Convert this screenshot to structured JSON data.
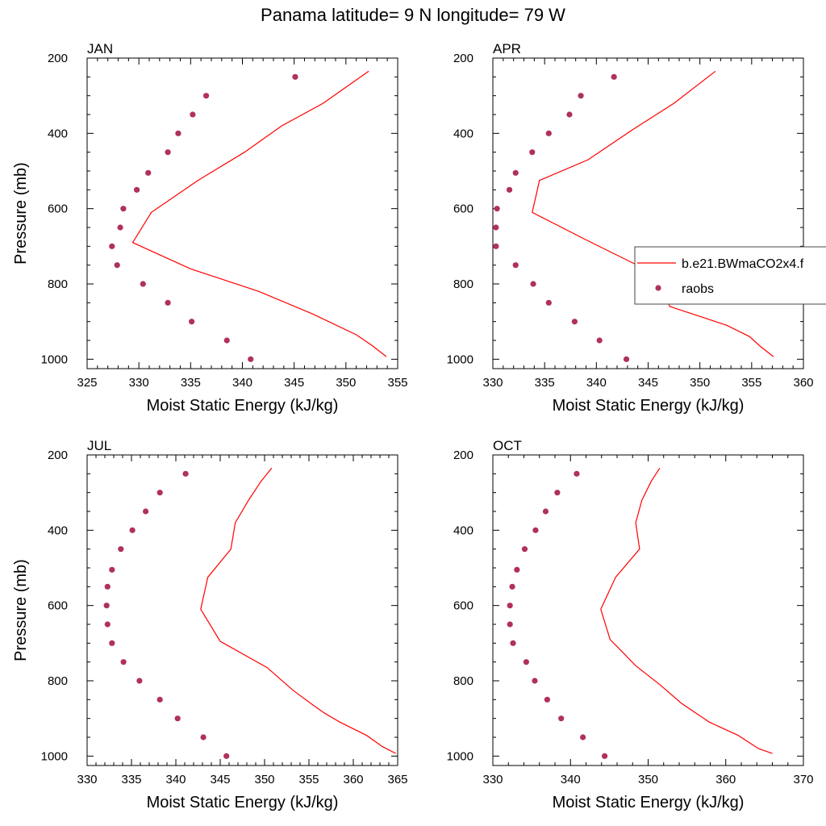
{
  "title": "Panama  latitude= 9 N longitude= 79 W",
  "colors": {
    "model": "#ff0000",
    "obs": "#b03060",
    "axis": "#000000"
  },
  "legend": {
    "placement": "inside APR panel, right edge",
    "entries": [
      {
        "label": "b.e21.BWmaCO2x4.f",
        "style": "line"
      },
      {
        "label": "raobs",
        "style": "marker"
      }
    ]
  },
  "chart_data": [
    {
      "type": "line",
      "title": "JAN",
      "xlabel": "Moist Static Energy (kJ/kg)",
      "ylabel": "Pressure (mb)",
      "xlim": [
        325,
        355
      ],
      "ylim": [
        200,
        1025
      ],
      "y_reversed": true,
      "xticks": [
        325,
        330,
        335,
        340,
        345,
        350,
        355
      ],
      "yticks": [
        200,
        400,
        600,
        800,
        1000
      ],
      "series": [
        {
          "name": "b.e21.BWmaCO2x4.f",
          "style": "line",
          "x": [
            352.2,
            347.8,
            343.8,
            340.2,
            335.7,
            331.2,
            329.4,
            335.0,
            341.6,
            346.8,
            351.0,
            352.6,
            353.9
          ],
          "y": [
            235,
            320,
            380,
            450,
            525,
            610,
            690,
            760,
            820,
            880,
            935,
            965,
            993
          ]
        },
        {
          "name": "raobs",
          "style": "scatter",
          "x": [
            345.1,
            336.5,
            335.2,
            333.8,
            332.8,
            330.9,
            329.8,
            328.5,
            328.2,
            327.4,
            327.9,
            330.4,
            332.8,
            335.1,
            338.5,
            340.8
          ],
          "y": [
            250,
            300,
            350,
            400,
            450,
            505,
            550,
            600,
            650,
            700,
            750,
            800,
            850,
            900,
            950,
            1000
          ]
        }
      ]
    },
    {
      "type": "line",
      "title": "APR",
      "xlabel": "Moist Static Energy (kJ/kg)",
      "ylabel": "",
      "xlim": [
        330,
        360
      ],
      "ylim": [
        200,
        1025
      ],
      "y_reversed": true,
      "xticks": [
        330,
        335,
        340,
        345,
        350,
        355,
        360
      ],
      "yticks": [
        200,
        400,
        600,
        800,
        1000
      ],
      "series": [
        {
          "name": "b.e21.BWmaCO2x4.f",
          "style": "line",
          "x": [
            351.5,
            347.5,
            343.5,
            339.2,
            334.5,
            333.8,
            338.8,
            343.2,
            346.2,
            346.4,
            347.1,
            352.6,
            354.8,
            355.8,
            357.1
          ],
          "y": [
            235,
            320,
            390,
            470,
            525,
            610,
            680,
            740,
            780,
            820,
            860,
            910,
            940,
            965,
            993
          ]
        },
        {
          "name": "raobs",
          "style": "scatter",
          "x": [
            341.7,
            338.5,
            337.4,
            335.4,
            333.8,
            332.2,
            331.6,
            330.4,
            330.3,
            330.3,
            332.2,
            333.9,
            335.4,
            337.9,
            340.3,
            342.9
          ],
          "y": [
            250,
            300,
            350,
            400,
            450,
            505,
            550,
            600,
            650,
            700,
            750,
            800,
            850,
            900,
            950,
            1000
          ]
        }
      ]
    },
    {
      "type": "line",
      "title": "JUL",
      "xlabel": "Moist Static Energy (kJ/kg)",
      "ylabel": "Pressure (mb)",
      "xlim": [
        330,
        365
      ],
      "ylim": [
        200,
        1025
      ],
      "y_reversed": true,
      "xticks": [
        330,
        335,
        340,
        345,
        350,
        355,
        360,
        365
      ],
      "yticks": [
        200,
        400,
        600,
        800,
        1000
      ],
      "series": [
        {
          "name": "b.e21.BWmaCO2x4.f",
          "style": "line",
          "x": [
            350.8,
            349.6,
            348.2,
            346.7,
            346.2,
            343.6,
            342.8,
            345.0,
            350.3,
            353.2,
            355.2,
            356.7,
            358.5,
            361.5,
            363.3,
            364.8
          ],
          "y": [
            235,
            270,
            320,
            380,
            450,
            525,
            610,
            695,
            765,
            825,
            860,
            885,
            910,
            945,
            975,
            993
          ]
        },
        {
          "name": "raobs",
          "style": "scatter",
          "x": [
            341.1,
            338.2,
            336.6,
            335.1,
            333.8,
            332.8,
            332.3,
            332.2,
            332.3,
            332.8,
            334.1,
            335.9,
            338.2,
            340.2,
            343.1,
            345.7
          ],
          "y": [
            250,
            300,
            350,
            400,
            450,
            505,
            550,
            600,
            650,
            700,
            750,
            800,
            850,
            900,
            950,
            1000
          ]
        }
      ]
    },
    {
      "type": "line",
      "title": "OCT",
      "xlabel": "Moist Static Energy (kJ/kg)",
      "ylabel": "",
      "xlim": [
        330,
        370
      ],
      "ylim": [
        200,
        1025
      ],
      "y_reversed": true,
      "xticks": [
        330,
        340,
        350,
        360,
        370
      ],
      "yticks": [
        200,
        400,
        600,
        800,
        1000
      ],
      "series": [
        {
          "name": "b.e21.BWmaCO2x4.f",
          "style": "line",
          "x": [
            351.5,
            350.4,
            349.2,
            348.4,
            348.9,
            345.8,
            343.9,
            345.1,
            348.4,
            351.5,
            354.3,
            357.9,
            361.6,
            364.2,
            366.0
          ],
          "y": [
            235,
            270,
            320,
            380,
            450,
            525,
            610,
            690,
            760,
            810,
            860,
            910,
            945,
            980,
            993
          ]
        },
        {
          "name": "raobs",
          "style": "scatter",
          "x": [
            340.8,
            338.3,
            336.8,
            335.5,
            334.1,
            333.1,
            332.5,
            332.2,
            332.2,
            332.6,
            334.3,
            335.4,
            337.0,
            338.8,
            341.6,
            344.4
          ],
          "y": [
            250,
            300,
            350,
            400,
            450,
            505,
            550,
            600,
            650,
            700,
            750,
            800,
            850,
            900,
            950,
            1000
          ]
        }
      ]
    }
  ]
}
